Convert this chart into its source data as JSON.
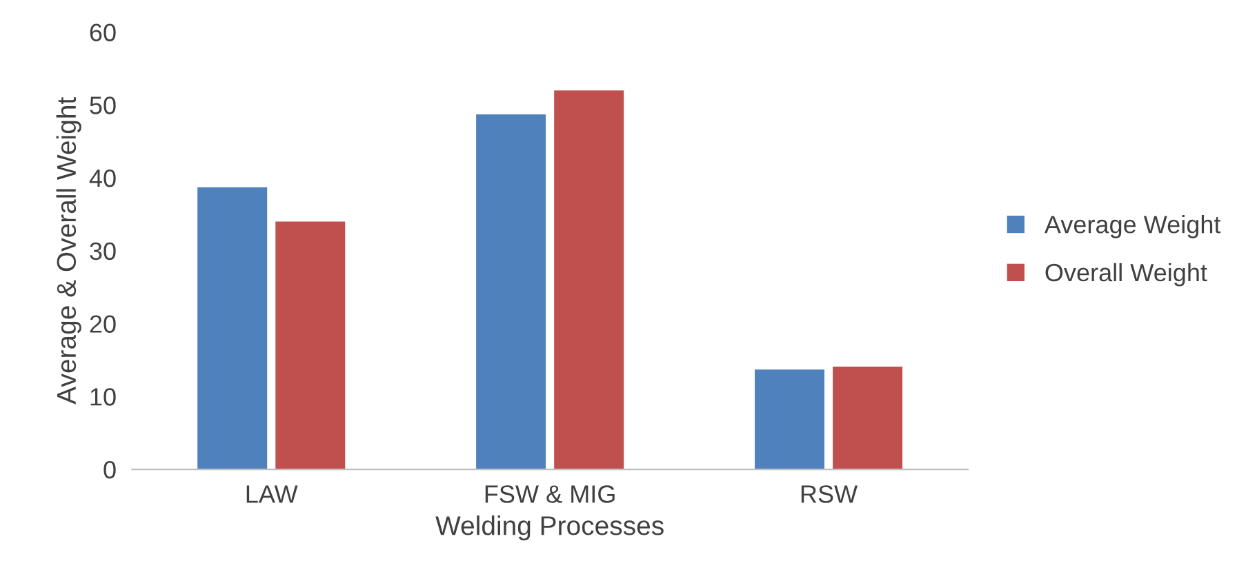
{
  "chart_data": {
    "type": "bar",
    "xlabel": "Welding Processes",
    "ylabel": "Average & Overall Weight",
    "categories": [
      "LAW",
      "FSW & MIG",
      "RSW"
    ],
    "series": [
      {
        "name": "Average Weight",
        "color": "#4f81bd",
        "values": [
          38.7,
          48.7,
          13.7
        ]
      },
      {
        "name": "Overall Weight",
        "color": "#c0504d",
        "values": [
          34.0,
          52.0,
          14.1
        ]
      }
    ],
    "ylim": [
      0,
      60
    ],
    "yticks": [
      0,
      10,
      20,
      30,
      40,
      50,
      60
    ],
    "grid": false,
    "legend": "right"
  }
}
